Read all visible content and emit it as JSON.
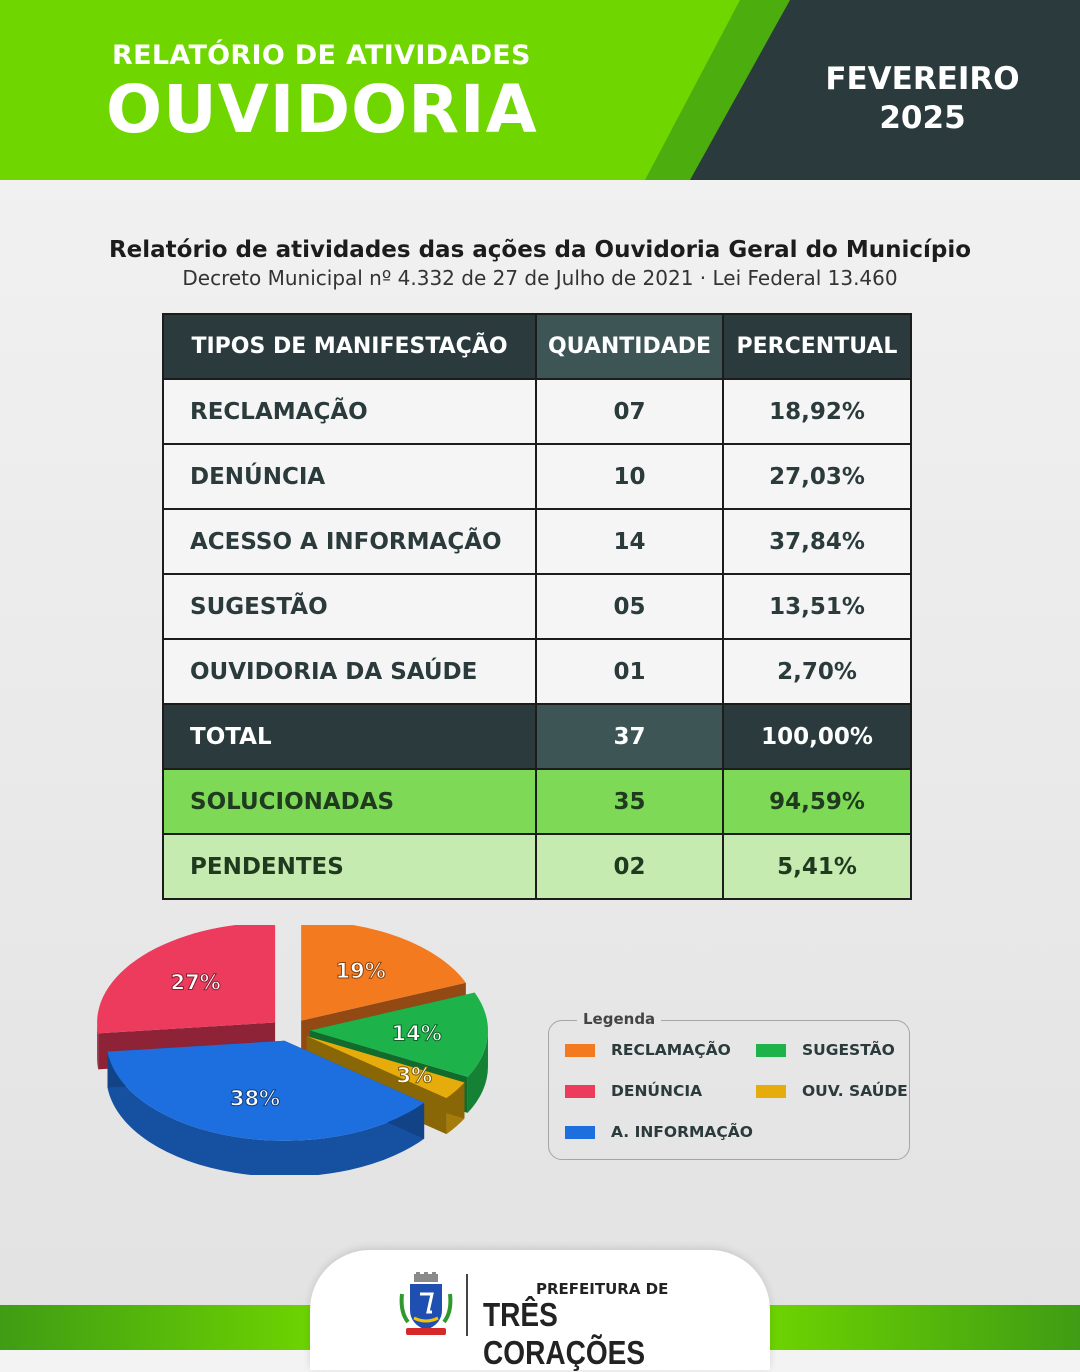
{
  "header": {
    "subtitle": "RELATÓRIO DE ATIVIDADES",
    "title": "OUVIDORIA",
    "month": "FEVEREIRO",
    "year": "2025"
  },
  "report": {
    "title": "Relatório de atividades das ações da Ouvidoria Geral do Município",
    "subtitle": "Decreto Municipal nº 4.332 de 27 de Julho de 2021 · Lei Federal 13.460"
  },
  "table": {
    "headers": [
      "TIPOS DE MANIFESTAÇÃO",
      "QUANTIDADE",
      "PERCENTUAL"
    ],
    "rows": [
      {
        "type": "RECLAMAÇÃO",
        "qty": "07",
        "pct": "18,92%"
      },
      {
        "type": "DENÚNCIA",
        "qty": "10",
        "pct": "27,03%"
      },
      {
        "type": "ACESSO A INFORMAÇÃO",
        "qty": "14",
        "pct": "37,84%"
      },
      {
        "type": "SUGESTÃO",
        "qty": "05",
        "pct": "13,51%"
      },
      {
        "type": "OUVIDORIA DA SAÚDE",
        "qty": "01",
        "pct": "2,70%"
      }
    ],
    "total": {
      "type": "TOTAL",
      "qty": "37",
      "pct": "100,00%"
    },
    "solved": {
      "type": "SOLUCIONADAS",
      "qty": "35",
      "pct": "94,59%"
    },
    "pending": {
      "type": "PENDENTES",
      "qty": "02",
      "pct": "5,41%"
    }
  },
  "chart_data": {
    "type": "pie",
    "slices": [
      {
        "label": "RECLAMAÇÃO",
        "value": 19,
        "text": "19%",
        "color": "#f47a1f"
      },
      {
        "label": "SUGESTÃO",
        "value": 14,
        "text": "14%",
        "color": "#1db34a"
      },
      {
        "label": "OUV. SAÚDE",
        "value": 3,
        "text": "3%",
        "color": "#e5ac0c"
      },
      {
        "label": "A. INFORMAÇÃO",
        "value": 38,
        "text": "38%",
        "color": "#1d6fe0"
      },
      {
        "label": "DENÚNCIA",
        "value": 27,
        "text": "27%",
        "color": "#ec3b5c"
      }
    ],
    "legend_title": "Legenda",
    "legend_placement": "right"
  },
  "footer": {
    "prefix": "PREFEITURA DE",
    "city": "TRÊS CORAÇÕES"
  },
  "icons": {
    "crest": "coat-of-arms-icon"
  }
}
